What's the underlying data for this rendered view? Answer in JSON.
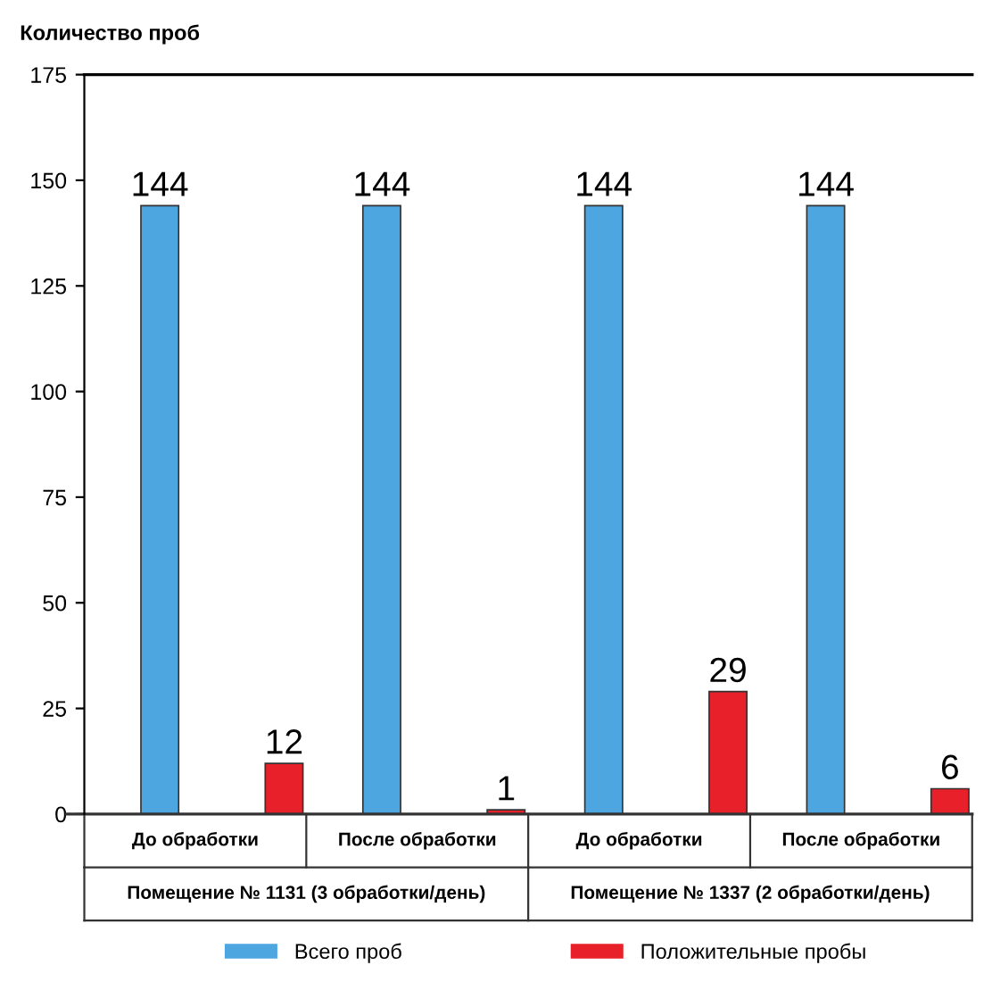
{
  "chart_data": {
    "type": "bar",
    "ylabel": "Количество проб",
    "categories": [
      "До обработки",
      "После обработки",
      "До обработки",
      "После обработки"
    ],
    "series": [
      {
        "name": "Всего проб",
        "color": "#4da6e0",
        "values": [
          144,
          144,
          144,
          144
        ]
      },
      {
        "name": "Положительные пробы",
        "color": "#e8202a",
        "values": [
          12,
          1,
          29,
          6
        ]
      }
    ],
    "annotations": [
      "Помещение № 1131 (3 обработки/день)",
      "Помещение № 1337 (2 обработки/день)"
    ],
    "ylim": [
      0,
      175
    ],
    "yticks": [
      0,
      25,
      50,
      75,
      100,
      125,
      150,
      175
    ],
    "data_labels": true,
    "grid": false,
    "legend": "bottom"
  }
}
